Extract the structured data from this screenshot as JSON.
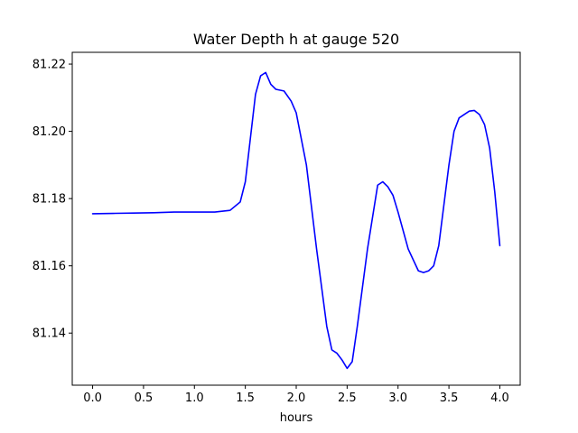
{
  "chart_data": {
    "type": "line",
    "title": "Water Depth h at gauge 520",
    "xlabel": "hours",
    "ylabel": "",
    "xlim": [
      -0.2,
      4.2
    ],
    "ylim": [
      81.1245,
      81.2235
    ],
    "xticks": [
      0.0,
      0.5,
      1.0,
      1.5,
      2.0,
      2.5,
      3.0,
      3.5,
      4.0
    ],
    "xtick_labels": [
      "0.0",
      "0.5",
      "1.0",
      "1.5",
      "2.0",
      "2.5",
      "3.0",
      "3.5",
      "4.0"
    ],
    "yticks": [
      81.14,
      81.16,
      81.18,
      81.2,
      81.22
    ],
    "ytick_labels": [
      "81.14",
      "81.16",
      "81.18",
      "81.20",
      "81.22"
    ],
    "grid": false,
    "series": [
      {
        "color": "#0000ff",
        "x": [
          0.0,
          0.2,
          0.4,
          0.6,
          0.8,
          1.0,
          1.2,
          1.35,
          1.45,
          1.5,
          1.55,
          1.6,
          1.65,
          1.7,
          1.75,
          1.8,
          1.88,
          1.95,
          2.0,
          2.1,
          2.2,
          2.3,
          2.35,
          2.4,
          2.45,
          2.5,
          2.55,
          2.6,
          2.7,
          2.8,
          2.85,
          2.9,
          2.95,
          3.0,
          3.1,
          3.2,
          3.25,
          3.3,
          3.35,
          3.4,
          3.5,
          3.55,
          3.6,
          3.65,
          3.7,
          3.75,
          3.8,
          3.85,
          3.9,
          3.95,
          4.0
        ],
        "y": [
          81.1755,
          81.1756,
          81.1757,
          81.1758,
          81.176,
          81.176,
          81.176,
          81.1765,
          81.179,
          81.185,
          81.198,
          81.211,
          81.2165,
          81.2175,
          81.214,
          81.2125,
          81.212,
          81.209,
          81.2055,
          81.19,
          81.165,
          81.142,
          81.135,
          81.134,
          81.132,
          81.1295,
          81.1315,
          81.142,
          81.165,
          81.184,
          81.185,
          81.1835,
          81.181,
          81.176,
          81.165,
          81.1585,
          81.158,
          81.1585,
          81.16,
          81.166,
          81.19,
          81.2,
          81.204,
          81.205,
          81.206,
          81.2062,
          81.205,
          81.202,
          81.195,
          81.182,
          81.166
        ]
      }
    ]
  }
}
